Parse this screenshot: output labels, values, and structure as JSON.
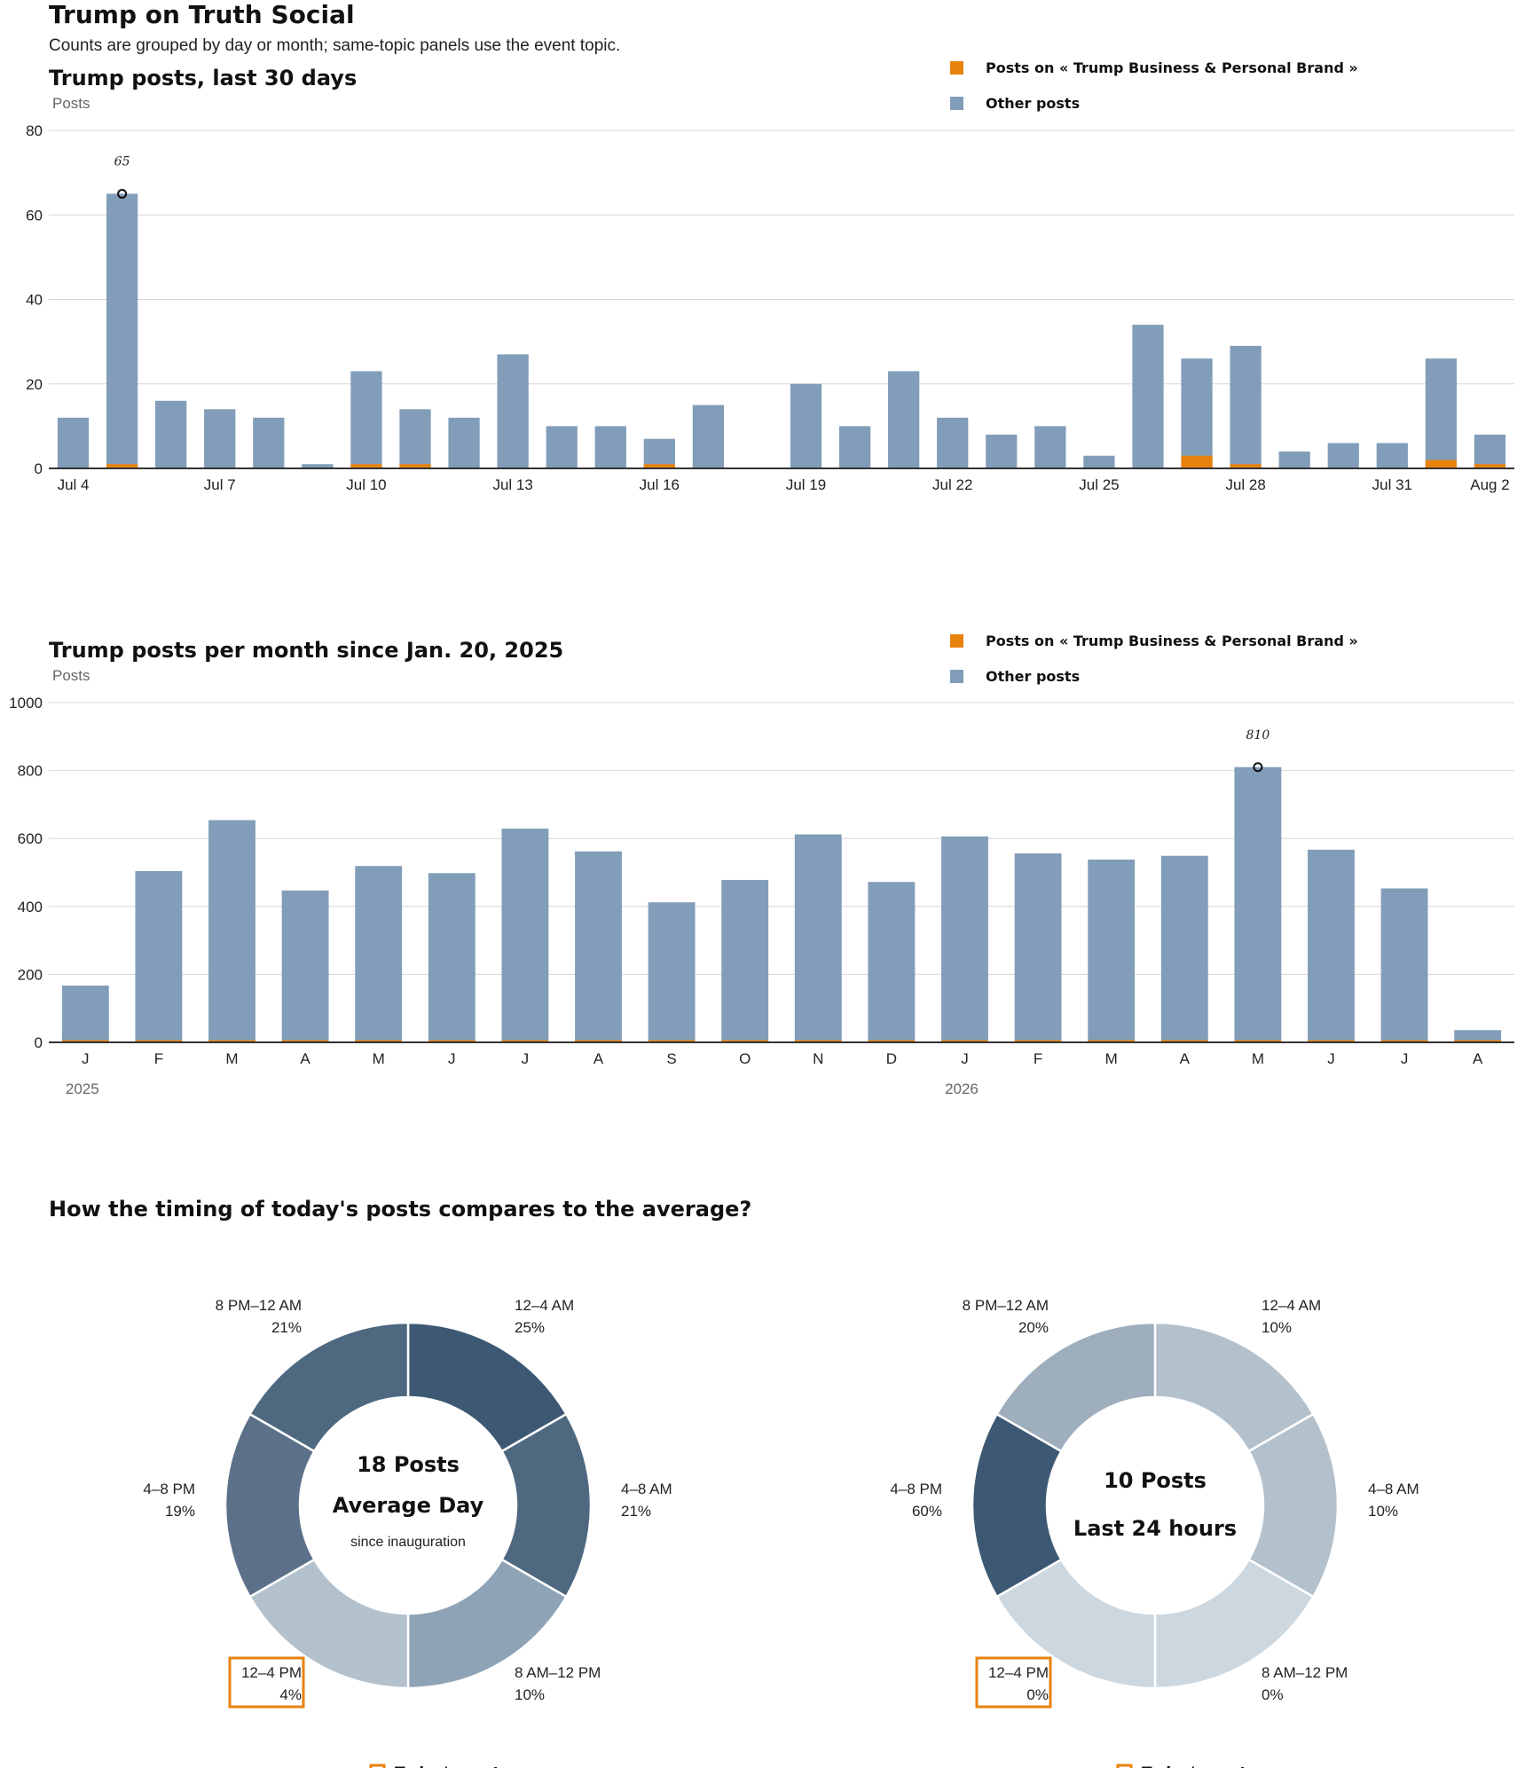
{
  "page": {
    "title": "Trump on Truth Social",
    "subtitle": "Counts are grouped by day or month; same-topic panels use the event topic."
  },
  "colors": {
    "topic": "#e8820f",
    "other": "#819db9",
    "grid": "#d6d6d6",
    "axis": "#333333",
    "highlight": "#e8820f",
    "shades": [
      "#3d5873",
      "#4e6880",
      "#5c7189",
      "#8fa3b6",
      "#b3c1cd",
      "#ccd7e0",
      "#9eaebd"
    ]
  },
  "legend": {
    "topic_label": "Posts on « Trump Business & Personal Brand »",
    "other_label": "Other posts"
  },
  "chart_data": [
    {
      "type": "bar",
      "stacked": true,
      "title": "Trump posts, last 30 days",
      "ylabel": "Posts",
      "ylim": [
        0,
        80
      ],
      "yticks": [
        0,
        20,
        40,
        60,
        80
      ],
      "categories": [
        "Jul 4",
        "Jul 5",
        "Jul 6",
        "Jul 7",
        "Jul 8",
        "Jul 9",
        "Jul 10",
        "Jul 11",
        "Jul 12",
        "Jul 13",
        "Jul 14",
        "Jul 15",
        "Jul 16",
        "Jul 17",
        "Jul 18",
        "Jul 19",
        "Jul 20",
        "Jul 21",
        "Jul 22",
        "Jul 23",
        "Jul 24",
        "Jul 25",
        "Jul 26",
        "Jul 27",
        "Jul 28",
        "Jul 29",
        "Jul 30",
        "Jul 31",
        "Aug 1",
        "Aug 2"
      ],
      "tick_labels": [
        "Jul 4",
        "",
        "",
        "Jul 7",
        "",
        "",
        "Jul 10",
        "",
        "",
        "Jul 13",
        "",
        "",
        "Jul 16",
        "",
        "",
        "Jul 19",
        "",
        "",
        "Jul 22",
        "",
        "",
        "Jul 25",
        "",
        "",
        "Jul 28",
        "",
        "",
        "Jul 31",
        "",
        "Aug 2"
      ],
      "series": [
        {
          "name": "Posts on « Trump Business & Personal Brand »",
          "values": [
            0,
            1,
            0,
            0,
            0,
            0,
            1,
            1,
            0,
            0,
            0,
            0,
            1,
            0,
            0,
            0,
            0,
            0,
            0,
            0,
            0,
            0,
            0,
            3,
            1,
            0,
            0,
            0,
            2,
            1
          ]
        },
        {
          "name": "Other posts",
          "values": [
            12,
            64,
            16,
            14,
            12,
            1,
            22,
            13,
            12,
            27,
            10,
            10,
            6,
            15,
            0,
            20,
            10,
            23,
            12,
            8,
            10,
            3,
            34,
            23,
            28,
            4,
            6,
            6,
            24,
            7
          ]
        }
      ],
      "annotation": {
        "category": "Jul 5",
        "value": 65,
        "label": "65"
      },
      "legend_position": "top-right",
      "grid": true
    },
    {
      "type": "bar",
      "stacked": true,
      "title": "Trump posts per month since Jan. 20, 2025",
      "ylabel": "Posts",
      "ylim": [
        0,
        1000
      ],
      "yticks": [
        0,
        200,
        400,
        600,
        800,
        1000
      ],
      "categories": [
        "J",
        "F",
        "M",
        "A",
        "M",
        "J",
        "J",
        "A",
        "S",
        "O",
        "N",
        "D",
        "J",
        "F",
        "M",
        "A",
        "M",
        "J",
        "J",
        "A"
      ],
      "years": [
        {
          "label": "2025",
          "start_index": 0
        },
        {
          "label": "2026",
          "start_index": 12
        }
      ],
      "series": [
        {
          "name": "Posts on « Trump Business & Personal Brand »",
          "values": [
            3,
            1,
            4,
            1,
            1,
            3,
            1,
            1,
            3,
            1,
            1,
            4,
            1,
            1,
            1,
            1,
            3,
            1,
            6,
            1
          ]
        },
        {
          "name": "Other posts",
          "values": [
            164,
            503,
            650,
            446,
            518,
            495,
            628,
            561,
            409,
            477,
            611,
            468,
            605,
            555,
            537,
            548,
            807,
            566,
            447,
            35
          ]
        }
      ],
      "annotation": {
        "index": 16,
        "value": 810,
        "label": "810"
      },
      "legend_position": "top-right",
      "grid": true
    },
    {
      "type": "pie",
      "donut": true,
      "section_title": "How the timing of today's posts compares to the average?",
      "center": {
        "line1": "18 Posts",
        "line2": "Average Day",
        "line3": "since inauguration"
      },
      "slices": [
        {
          "label": "12–4 AM",
          "value": 25,
          "pct": "25%"
        },
        {
          "label": "4–8 AM",
          "value": 21,
          "pct": "21%"
        },
        {
          "label": "8 AM–12 PM",
          "value": 10,
          "pct": "10%"
        },
        {
          "label": "12–4 PM",
          "value": 4,
          "pct": "4%",
          "highlight": true
        },
        {
          "label": "4–8 PM",
          "value": 19,
          "pct": "19%"
        },
        {
          "label": "8 PM–12 AM",
          "value": 21,
          "pct": "21%"
        }
      ],
      "legend": "Today's post"
    },
    {
      "type": "pie",
      "donut": true,
      "center": {
        "line1": "10 Posts",
        "line2": "Last 24 hours"
      },
      "slices": [
        {
          "label": "12–4 AM",
          "value": 10,
          "pct": "10%"
        },
        {
          "label": "4–8 AM",
          "value": 10,
          "pct": "10%"
        },
        {
          "label": "8 AM–12 PM",
          "value": 0,
          "pct": "0%"
        },
        {
          "label": "12–4 PM",
          "value": 0,
          "pct": "0%",
          "highlight": true
        },
        {
          "label": "4–8 PM",
          "value": 60,
          "pct": "60%"
        },
        {
          "label": "8 PM–12 AM",
          "value": 20,
          "pct": "20%"
        }
      ],
      "legend": "Today's post"
    }
  ]
}
